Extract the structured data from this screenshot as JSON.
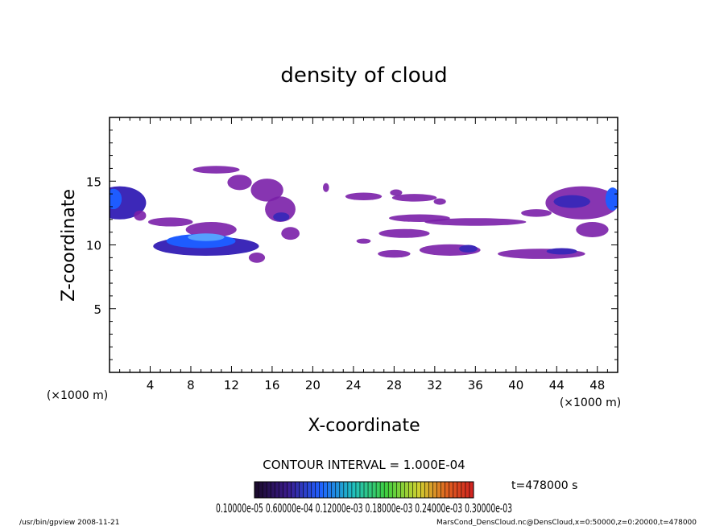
{
  "chart_data": {
    "type": "heatmap",
    "title": "density of cloud",
    "xlabel": "X-coordinate",
    "ylabel": "Z-coordinate",
    "x_unit_left": "(×1000 m)",
    "x_unit_right": "(×1000 m)",
    "xlim": [
      0,
      50
    ],
    "ylim": [
      0,
      20
    ],
    "x_ticks": [
      "4",
      "8",
      "12",
      "16",
      "20",
      "24",
      "28",
      "32",
      "36",
      "40",
      "44",
      "48"
    ],
    "y_ticks": [
      "5",
      "10",
      "15"
    ],
    "contour_interval": "CONTOUR INTERVAL = 1.000E-04",
    "time_label": "t=478000 s",
    "colorbar_labels": "0.10000e-05 0.60000e-04 0.12000e-03 0.18000e-03 0.24000e-03 0.30000e-03",
    "colors": {
      "low": "#7a1fa8",
      "mid": "#3c28b8",
      "high": "#1e5cff",
      "peak": "#55a0ff"
    },
    "blobs": [
      {
        "cx": 1.0,
        "cz": 13.3,
        "rx": 2.6,
        "rz": 1.3,
        "level": 2
      },
      {
        "cx": 0.4,
        "cz": 13.6,
        "rx": 0.8,
        "rz": 0.8,
        "level": 3
      },
      {
        "cx": 3.0,
        "cz": 12.3,
        "rx": 0.6,
        "rz": 0.4,
        "level": 1
      },
      {
        "cx": 6.0,
        "cz": 11.8,
        "rx": 2.2,
        "rz": 0.35,
        "level": 1
      },
      {
        "cx": 10.0,
        "cz": 11.2,
        "rx": 2.5,
        "rz": 0.6,
        "level": 1
      },
      {
        "cx": 9.5,
        "cz": 9.9,
        "rx": 5.2,
        "rz": 0.75,
        "level": 2
      },
      {
        "cx": 9.0,
        "cz": 10.3,
        "rx": 3.4,
        "rz": 0.55,
        "level": 3
      },
      {
        "cx": 9.5,
        "cz": 10.6,
        "rx": 1.8,
        "rz": 0.3,
        "level": 4
      },
      {
        "cx": 14.5,
        "cz": 9.0,
        "rx": 0.8,
        "rz": 0.4,
        "level": 1
      },
      {
        "cx": 10.5,
        "cz": 15.9,
        "rx": 2.3,
        "rz": 0.3,
        "level": 1
      },
      {
        "cx": 12.8,
        "cz": 14.9,
        "rx": 1.2,
        "rz": 0.6,
        "level": 1
      },
      {
        "cx": 15.5,
        "cz": 14.3,
        "rx": 1.6,
        "rz": 0.9,
        "level": 1
      },
      {
        "cx": 16.8,
        "cz": 12.8,
        "rx": 1.5,
        "rz": 1.0,
        "level": 1
      },
      {
        "cx": 16.9,
        "cz": 12.2,
        "rx": 0.8,
        "rz": 0.35,
        "level": 2
      },
      {
        "cx": 17.8,
        "cz": 10.9,
        "rx": 0.9,
        "rz": 0.5,
        "level": 1
      },
      {
        "cx": 21.3,
        "cz": 14.5,
        "rx": 0.3,
        "rz": 0.35,
        "level": 1
      },
      {
        "cx": 25.0,
        "cz": 13.8,
        "rx": 1.8,
        "rz": 0.3,
        "level": 1
      },
      {
        "cx": 28.2,
        "cz": 14.1,
        "rx": 0.6,
        "rz": 0.25,
        "level": 1
      },
      {
        "cx": 30.0,
        "cz": 13.7,
        "rx": 2.2,
        "rz": 0.3,
        "level": 1
      },
      {
        "cx": 32.5,
        "cz": 13.4,
        "rx": 0.6,
        "rz": 0.25,
        "level": 1
      },
      {
        "cx": 30.5,
        "cz": 12.1,
        "rx": 3.0,
        "rz": 0.3,
        "level": 1
      },
      {
        "cx": 36.0,
        "cz": 11.8,
        "rx": 5.0,
        "rz": 0.3,
        "level": 1
      },
      {
        "cx": 29.0,
        "cz": 10.9,
        "rx": 2.5,
        "rz": 0.35,
        "level": 1
      },
      {
        "cx": 25.0,
        "cz": 10.3,
        "rx": 0.7,
        "rz": 0.2,
        "level": 1
      },
      {
        "cx": 28.0,
        "cz": 9.3,
        "rx": 1.6,
        "rz": 0.3,
        "level": 1
      },
      {
        "cx": 33.5,
        "cz": 9.6,
        "rx": 3.0,
        "rz": 0.45,
        "level": 1
      },
      {
        "cx": 35.3,
        "cz": 9.7,
        "rx": 0.9,
        "rz": 0.3,
        "level": 2
      },
      {
        "cx": 42.5,
        "cz": 9.3,
        "rx": 4.3,
        "rz": 0.4,
        "level": 1
      },
      {
        "cx": 44.5,
        "cz": 9.5,
        "rx": 1.5,
        "rz": 0.25,
        "level": 2
      },
      {
        "cx": 46.5,
        "cz": 13.3,
        "rx": 3.6,
        "rz": 1.3,
        "level": 1
      },
      {
        "cx": 45.5,
        "cz": 13.4,
        "rx": 1.8,
        "rz": 0.5,
        "level": 2
      },
      {
        "cx": 49.5,
        "cz": 13.6,
        "rx": 0.7,
        "rz": 0.9,
        "level": 3
      },
      {
        "cx": 47.5,
        "cz": 11.2,
        "rx": 1.6,
        "rz": 0.6,
        "level": 1
      },
      {
        "cx": 42.0,
        "cz": 12.5,
        "rx": 1.5,
        "rz": 0.3,
        "level": 1
      }
    ]
  },
  "footer": {
    "left": "/usr/bin/gpview   2008-11-21",
    "right": "MarsCond_DensCloud.nc@DensCloud,x=0:50000,z=0:20000,t=478000"
  }
}
